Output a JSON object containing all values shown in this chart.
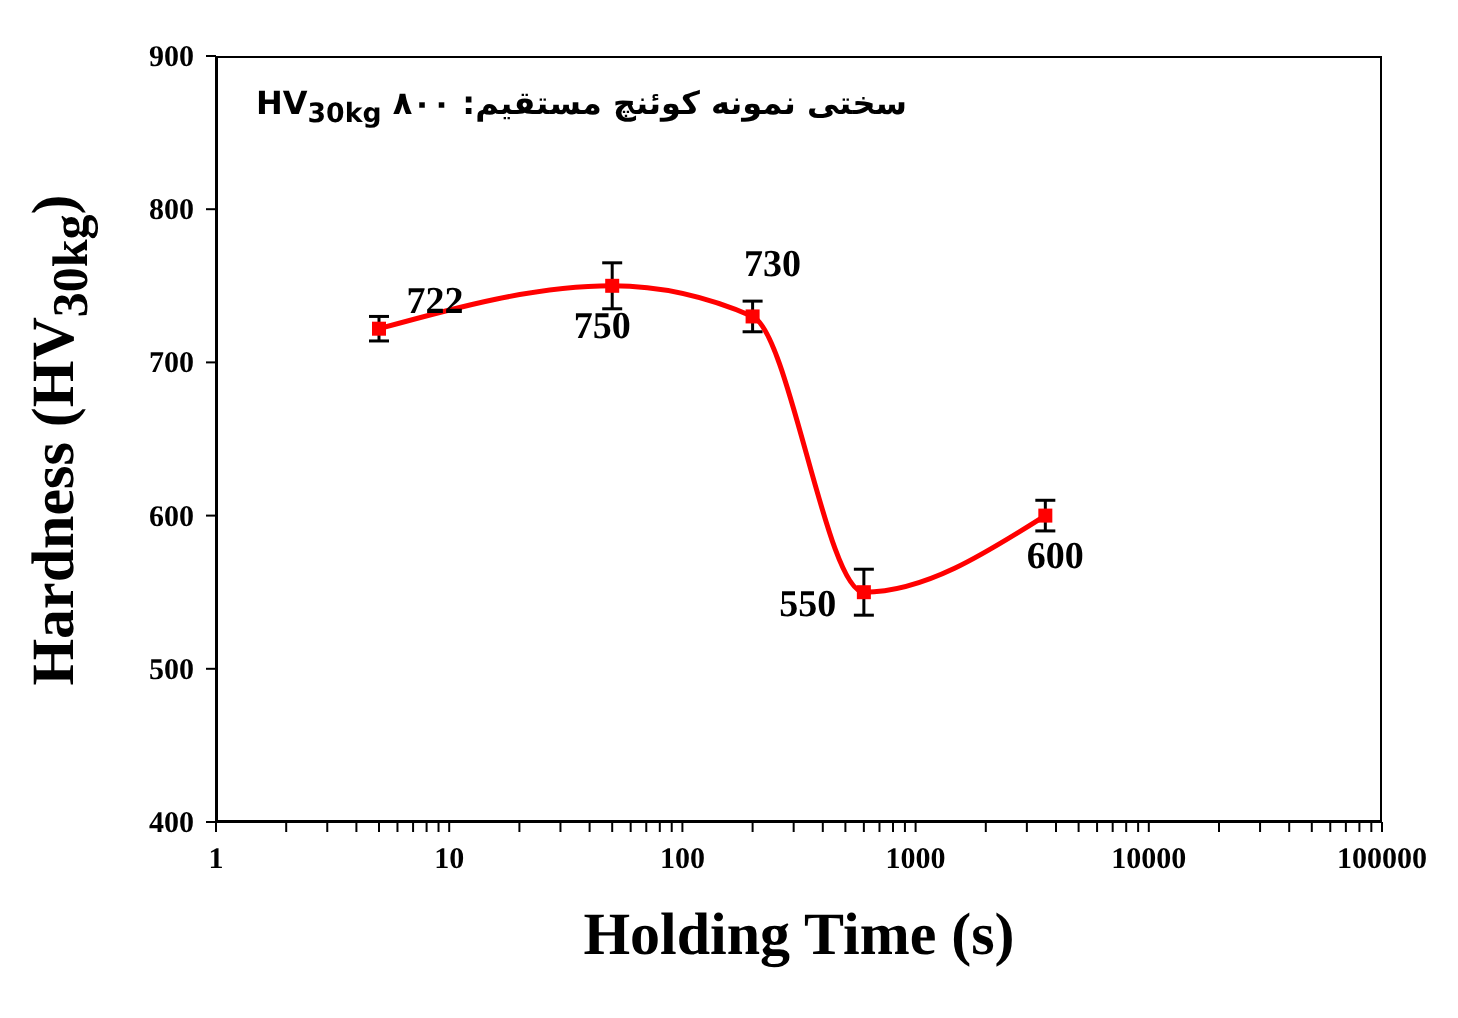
{
  "chart_data": {
    "type": "line",
    "xlabel": "Holding Time (s)",
    "ylabel": "Hardness (HV$_{30kg}$)",
    "annotations": [
      "سختی نمونه کوئنچ مستقیم: ۸۰۰ HV$_{30kg}$"
    ],
    "x": [
      5,
      50,
      200,
      600,
      3600
    ],
    "series": [
      {
        "color": "#ff0000",
        "values": [
          722,
          750,
          730,
          550,
          600
        ],
        "errors": [
          8,
          15,
          10,
          15,
          10
        ]
      }
    ],
    "log": "x",
    "xlim": [
      1,
      100000
    ],
    "xticks": [
      1,
      {
        "value": 2,
        "label": null
      },
      {
        "value": 3,
        "label": null
      },
      {
        "value": 4,
        "label": null
      },
      {
        "value": 5,
        "label": null
      },
      {
        "value": 6,
        "label": null
      },
      {
        "value": 7,
        "label": null
      },
      {
        "value": 8,
        "label": null
      },
      {
        "value": 9,
        "label": null
      },
      10,
      {
        "value": 20,
        "label": null
      },
      {
        "value": 30,
        "label": null
      },
      {
        "value": 40,
        "label": null
      },
      {
        "value": 50,
        "label": null
      },
      {
        "value": 60,
        "label": null
      },
      {
        "value": 70,
        "label": null
      },
      {
        "value": 80,
        "label": null
      },
      {
        "value": 90,
        "label": null
      },
      100,
      {
        "value": 200,
        "label": null
      },
      {
        "value": 300,
        "label": null
      },
      {
        "value": 400,
        "label": null
      },
      {
        "value": 500,
        "label": null
      },
      {
        "value": 600,
        "label": null
      },
      {
        "value": 700,
        "label": null
      },
      {
        "value": 800,
        "label": null
      },
      {
        "value": 900,
        "label": null
      },
      1000,
      {
        "value": 2000,
        "label": null
      },
      {
        "value": 3000,
        "label": null
      },
      {
        "value": 4000,
        "label": null
      },
      {
        "value": 5000,
        "label": null
      },
      {
        "value": 6000,
        "label": null
      },
      {
        "value": 7000,
        "label": null
      },
      {
        "value": 8000,
        "label": null
      },
      {
        "value": 9000,
        "label": null
      },
      10000,
      {
        "value": 20000,
        "label": null
      },
      {
        "value": 30000,
        "label": null
      },
      {
        "value": 40000,
        "label": null
      },
      {
        "value": 50000,
        "label": null
      },
      {
        "value": 60000,
        "label": null
      },
      {
        "value": 70000,
        "label": null
      },
      {
        "value": 80000,
        "label": null
      },
      {
        "value": 90000,
        "label": null
      },
      100000
    ],
    "ylim": [
      400,
      900
    ],
    "yticks": [
      400,
      500,
      600,
      700,
      800,
      900
    ],
    "grid": false,
    "marker": "square",
    "line_style": "solid",
    "data_labels": true
  }
}
